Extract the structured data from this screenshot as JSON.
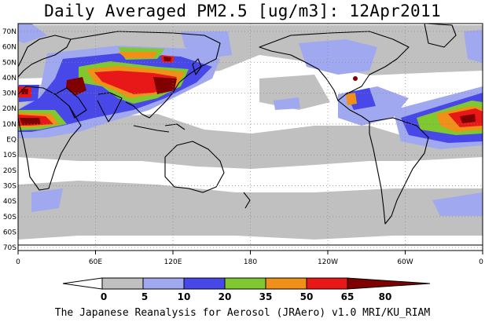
{
  "title": "Daily Averaged PM2.5 [ug/m3]: 12Apr2011",
  "credit": "The Japanese Reanalysis for Aerosol (JRAero) v1.0 MRI/KU_RIAM",
  "map": {
    "projection": "equirectangular",
    "lon_range": [
      0,
      360
    ],
    "lat_range": [
      -75,
      75
    ],
    "graticule": "dotted",
    "ocean_color": "#ffffff",
    "coastline_color": "#000000"
  },
  "lon_labels": [
    "0",
    "60E",
    "120E",
    "180",
    "120W",
    "60W",
    "0"
  ],
  "lat_labels": [
    "70N",
    "60N",
    "50N",
    "40N",
    "30N",
    "20N",
    "10N",
    "EQ",
    "10S",
    "20S",
    "30S",
    "40S",
    "50S",
    "60S",
    "70S"
  ],
  "colorbar": {
    "levels": [
      "0",
      "5",
      "10",
      "20",
      "35",
      "50",
      "65",
      "80"
    ],
    "colors": [
      "#ffffff",
      "#c0c0c0",
      "#a0a8f0",
      "#4848e8",
      "#80c830",
      "#f09018",
      "#e81818",
      "#800000"
    ]
  }
}
